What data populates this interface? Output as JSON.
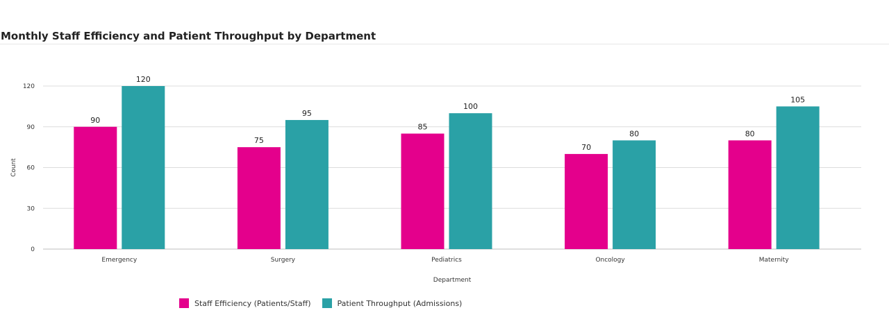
{
  "chart_data": {
    "type": "bar",
    "title": "Monthly Staff Efficiency and Patient Throughput by Department",
    "xlabel": "Department",
    "ylabel": "Count",
    "categories": [
      "Emergency",
      "Surgery",
      "Pediatrics",
      "Oncology",
      "Maternity"
    ],
    "series": [
      {
        "name": "Staff Efficiency (Patients/Staff)",
        "color": "#e4008c",
        "values": [
          90,
          75,
          85,
          70,
          80
        ]
      },
      {
        "name": "Patient Throughput (Admissions)",
        "color": "#2aa1a6",
        "values": [
          120,
          95,
          100,
          80,
          105
        ]
      }
    ],
    "ylim": [
      0,
      120
    ],
    "yticks": [
      0,
      30,
      60,
      90,
      120
    ],
    "grid": true,
    "legend_position": "bottom-left"
  }
}
